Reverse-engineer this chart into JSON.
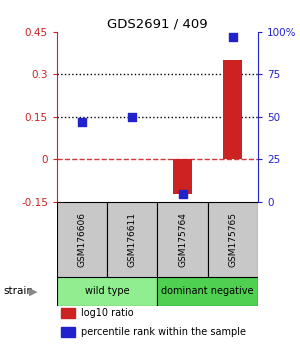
{
  "title": "GDS2691 / 409",
  "samples": [
    "GSM176606",
    "GSM176611",
    "GSM175764",
    "GSM175765"
  ],
  "log10_ratio": [
    0.003,
    0.003,
    -0.12,
    0.35
  ],
  "percentile_rank": [
    47,
    50,
    5,
    97
  ],
  "groups": [
    {
      "label": "wild type",
      "samples": [
        0,
        1
      ],
      "color": "#90ee90"
    },
    {
      "label": "dominant negative",
      "samples": [
        2,
        3
      ],
      "color": "#50d050"
    }
  ],
  "left_ylim": [
    -0.15,
    0.45
  ],
  "right_ylim": [
    0,
    100
  ],
  "left_yticks": [
    -0.15,
    0,
    0.15,
    0.3,
    0.45
  ],
  "right_yticks": [
    0,
    25,
    50,
    75,
    100
  ],
  "right_yticklabels": [
    "0",
    "25",
    "50",
    "75",
    "100%"
  ],
  "hlines_dotted": [
    0.15,
    0.3
  ],
  "hline_dashed": 0.0,
  "bar_color": "#cc2222",
  "dot_color": "#2222cc",
  "bar_width": 0.38,
  "dot_size": 40,
  "background_color": "#ffffff",
  "left_axis_color": "#cc2222",
  "right_axis_color": "#2222cc",
  "legend_items": [
    {
      "color": "#cc2222",
      "label": "log10 ratio"
    },
    {
      "color": "#2222cc",
      "label": "percentile rank within the sample"
    }
  ],
  "strain_label": "strain",
  "sample_bg_color": "#c8c8c8"
}
